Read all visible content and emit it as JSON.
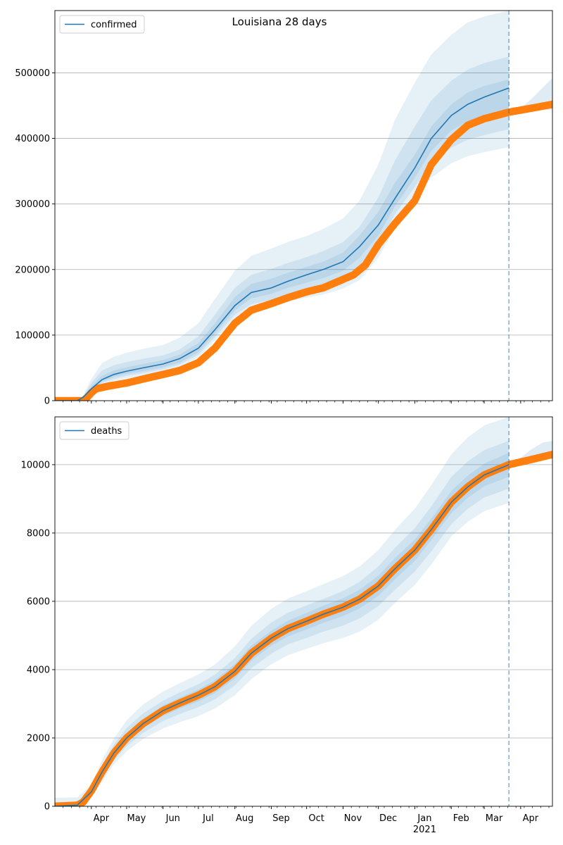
{
  "figure": {
    "title": "Louisiana 28 days"
  },
  "colors": {
    "model": "#1f77b4",
    "observed": "#ff7f0e",
    "band": "#1f77b4",
    "grid": "#b0b0b0",
    "cutoff": "#1f77b4"
  },
  "chart_data": [
    {
      "type": "area",
      "title": "Louisiana 28 days",
      "legend": {
        "label": "confirmed",
        "placement": "top-left"
      },
      "grid": "y",
      "ylim": [
        0,
        595000
      ],
      "xlim": [
        "2020-03-01",
        "2021-04-28"
      ],
      "cutoff_date": "2021-03-22",
      "yticks": [
        0,
        100000,
        200000,
        300000,
        400000,
        500000
      ],
      "ytick_labels": [
        "0",
        "100000",
        "200000",
        "300000",
        "400000",
        "500000"
      ],
      "median": {
        "name": "confirmed",
        "x": [
          "2020-03-01",
          "2020-03-20",
          "2020-03-25",
          "2020-04-01",
          "2020-04-10",
          "2020-04-20",
          "2020-05-01",
          "2020-05-15",
          "2020-06-01",
          "2020-06-15",
          "2020-07-01",
          "2020-07-15",
          "2020-08-01",
          "2020-08-15",
          "2020-09-01",
          "2020-09-15",
          "2020-10-01",
          "2020-10-15",
          "2020-11-01",
          "2020-11-15",
          "2020-12-01",
          "2020-12-15",
          "2021-01-01",
          "2021-01-15",
          "2021-02-01",
          "2021-02-15",
          "2021-03-01",
          "2021-03-22"
        ],
        "y": [
          0,
          0,
          5000,
          18000,
          32000,
          40000,
          45000,
          50000,
          56000,
          64000,
          80000,
          108000,
          145000,
          165000,
          172000,
          182000,
          192000,
          200000,
          212000,
          235000,
          268000,
          308000,
          355000,
          400000,
          435000,
          452000,
          463000,
          477000
        ]
      },
      "bands": [
        {
          "level": "outer",
          "lower": [
            0,
            0,
            2000,
            12000,
            24000,
            30000,
            34000,
            38000,
            43000,
            51000,
            66000,
            92000,
            124000,
            138000,
            144000,
            151000,
            157000,
            162000,
            171000,
            184000,
            218000,
            264000,
            307000,
            340000,
            362000,
            373000,
            379000,
            387000
          ],
          "upper": [
            0,
            0,
            8000,
            33000,
            57000,
            67000,
            73000,
            79000,
            85000,
            96000,
            118000,
            155000,
            198000,
            221000,
            232000,
            242000,
            251000,
            262000,
            278000,
            305000,
            360000,
            428000,
            485000,
            528000,
            558000,
            577000,
            586000,
            595000
          ]
        },
        {
          "level": "middle",
          "lower": [
            0,
            0,
            3000,
            14000,
            27000,
            33000,
            38000,
            42000,
            48000,
            55000,
            70000,
            97000,
            131000,
            147000,
            154000,
            162000,
            169000,
            175000,
            185000,
            202000,
            238000,
            284000,
            326000,
            362000,
            386000,
            398000,
            405000,
            414000
          ],
          "upper": [
            0,
            0,
            7000,
            27000,
            46000,
            54000,
            59000,
            64000,
            69000,
            78000,
            98000,
            131000,
            172000,
            192000,
            201000,
            210000,
            219000,
            228000,
            242000,
            265000,
            310000,
            366000,
            418000,
            458000,
            488000,
            505000,
            515000,
            525000
          ]
        },
        {
          "level": "inner",
          "lower": [
            0,
            0,
            4000,
            16000,
            29000,
            36000,
            41000,
            45000,
            51000,
            58000,
            74000,
            102000,
            138000,
            156000,
            163000,
            172000,
            180000,
            187000,
            198000,
            218000,
            252000,
            296000,
            340000,
            381000,
            412000,
            426000,
            434000,
            443000
          ],
          "upper": [
            0,
            0,
            6000,
            22000,
            38000,
            46000,
            51000,
            56000,
            62000,
            70000,
            88000,
            118000,
            158000,
            178000,
            186000,
            195000,
            204000,
            212000,
            226000,
            252000,
            288000,
            332000,
            375000,
            418000,
            452000,
            470000,
            480000,
            490000
          ]
        }
      ],
      "observed": {
        "name": "confirmed observed",
        "x": [
          "2020-03-01",
          "2020-03-25",
          "2020-03-28",
          "2020-04-01",
          "2020-04-05",
          "2020-04-15",
          "2020-05-01",
          "2020-05-15",
          "2020-06-01",
          "2020-06-15",
          "2020-07-01",
          "2020-07-15",
          "2020-08-01",
          "2020-08-15",
          "2020-09-01",
          "2020-09-15",
          "2020-10-01",
          "2020-10-15",
          "2020-11-01",
          "2020-11-10",
          "2020-11-20",
          "2020-12-01",
          "2020-12-15",
          "2021-01-01",
          "2021-01-15",
          "2021-02-01",
          "2021-02-15",
          "2021-03-01",
          "2021-03-22",
          "2021-04-10",
          "2021-04-28"
        ],
        "y": [
          0,
          0,
          4000,
          12000,
          18000,
          22000,
          27000,
          33000,
          40000,
          46000,
          58000,
          80000,
          118000,
          138000,
          148000,
          157000,
          166000,
          172000,
          185000,
          192000,
          207000,
          238000,
          270000,
          305000,
          360000,
          398000,
          420000,
          430000,
          440000,
          446000,
          452000
        ]
      },
      "forecast_band": {
        "x": [
          "2021-03-22",
          "2021-04-01",
          "2021-04-10",
          "2021-04-20",
          "2021-04-28"
        ],
        "lower": [
          440000,
          441000,
          442000,
          443000,
          444000
        ],
        "upper": [
          440000,
          446000,
          460000,
          478000,
          492000
        ]
      }
    },
    {
      "type": "area",
      "legend": {
        "label": "deaths",
        "placement": "top-left"
      },
      "grid": "y",
      "ylim": [
        0,
        11400
      ],
      "xlim": [
        "2020-03-01",
        "2021-04-28"
      ],
      "cutoff_date": "2021-03-22",
      "yticks": [
        0,
        2000,
        4000,
        6000,
        8000,
        10000
      ],
      "ytick_labels": [
        "0",
        "2000",
        "4000",
        "6000",
        "8000",
        "10000"
      ],
      "x_tick_labels": [
        {
          "date": "2020-04-01",
          "label": "Apr"
        },
        {
          "date": "2020-05-01",
          "label": "May"
        },
        {
          "date": "2020-06-01",
          "label": "Jun"
        },
        {
          "date": "2020-07-01",
          "label": "Jul"
        },
        {
          "date": "2020-08-01",
          "label": "Aug"
        },
        {
          "date": "2020-09-01",
          "label": "Sep"
        },
        {
          "date": "2020-10-01",
          "label": "Oct"
        },
        {
          "date": "2020-11-01",
          "label": "Nov"
        },
        {
          "date": "2020-12-01",
          "label": "Dec"
        },
        {
          "date": "2021-01-01",
          "label": "Jan",
          "sublabel": "2021"
        },
        {
          "date": "2021-02-01",
          "label": "Feb"
        },
        {
          "date": "2021-03-01",
          "label": "Mar"
        },
        {
          "date": "2021-04-01",
          "label": "Apr"
        }
      ],
      "median": {
        "name": "deaths",
        "x": [
          "2020-03-01",
          "2020-03-20",
          "2020-04-01",
          "2020-04-10",
          "2020-04-20",
          "2020-05-01",
          "2020-05-15",
          "2020-06-01",
          "2020-06-15",
          "2020-07-01",
          "2020-07-15",
          "2020-08-01",
          "2020-08-15",
          "2020-09-01",
          "2020-09-15",
          "2020-10-01",
          "2020-10-15",
          "2020-11-01",
          "2020-11-15",
          "2020-12-01",
          "2020-12-15",
          "2021-01-01",
          "2021-01-15",
          "2021-02-01",
          "2021-02-15",
          "2021-03-01",
          "2021-03-22"
        ],
        "y": [
          0,
          30,
          420,
          1000,
          1550,
          2000,
          2420,
          2800,
          3020,
          3250,
          3500,
          3950,
          4480,
          4920,
          5200,
          5420,
          5620,
          5830,
          6060,
          6450,
          6950,
          7500,
          8100,
          8900,
          9350,
          9700,
          10000
        ]
      },
      "bands": [
        {
          "level": "outer",
          "lower": [
            0,
            0,
            250,
            720,
            1220,
            1610,
            1970,
            2280,
            2460,
            2640,
            2860,
            3250,
            3720,
            4160,
            4420,
            4610,
            4770,
            4930,
            5110,
            5460,
            5950,
            6480,
            7080,
            7900,
            8330,
            8640,
            8880
          ],
          "upper": [
            250,
            260,
            620,
            1350,
            1970,
            2520,
            2980,
            3360,
            3600,
            3860,
            4150,
            4680,
            5280,
            5780,
            6080,
            6300,
            6500,
            6740,
            7020,
            7500,
            8090,
            8710,
            9400,
            10300,
            10800,
            11150,
            11400
          ]
        },
        {
          "level": "middle",
          "lower": [
            0,
            10,
            320,
            820,
            1340,
            1760,
            2150,
            2500,
            2700,
            2900,
            3130,
            3540,
            4040,
            4470,
            4740,
            4930,
            5110,
            5290,
            5500,
            5860,
            6330,
            6870,
            7460,
            8260,
            8710,
            9040,
            9300
          ],
          "upper": [
            120,
            140,
            540,
            1200,
            1800,
            2290,
            2720,
            3090,
            3330,
            3570,
            3850,
            4340,
            4900,
            5380,
            5660,
            5880,
            6070,
            6300,
            6570,
            7020,
            7560,
            8140,
            8780,
            9640,
            10100,
            10430,
            10700
          ]
        },
        {
          "level": "inner",
          "lower": [
            0,
            20,
            370,
            900,
            1440,
            1880,
            2290,
            2650,
            2860,
            3070,
            3310,
            3740,
            4260,
            4700,
            4970,
            5180,
            5370,
            5570,
            5790,
            6160,
            6640,
            7190,
            7790,
            8580,
            9030,
            9370,
            9650
          ],
          "upper": [
            60,
            80,
            470,
            1100,
            1670,
            2120,
            2550,
            2950,
            3180,
            3420,
            3690,
            4160,
            4700,
            5140,
            5430,
            5660,
            5870,
            6090,
            6340,
            6750,
            7260,
            7810,
            8420,
            9230,
            9680,
            10030,
            10350
          ]
        }
      ],
      "observed": {
        "name": "deaths observed",
        "x": [
          "2020-03-01",
          "2020-03-20",
          "2020-03-25",
          "2020-04-01",
          "2020-04-10",
          "2020-04-20",
          "2020-05-01",
          "2020-05-15",
          "2020-06-01",
          "2020-06-15",
          "2020-07-01",
          "2020-07-15",
          "2020-08-01",
          "2020-08-15",
          "2020-09-01",
          "2020-09-15",
          "2020-10-01",
          "2020-10-15",
          "2020-11-01",
          "2020-11-15",
          "2020-12-01",
          "2020-12-15",
          "2021-01-01",
          "2021-01-15",
          "2021-02-01",
          "2021-02-15",
          "2021-03-01",
          "2021-03-22",
          "2021-04-10",
          "2021-04-28"
        ],
        "y": [
          0,
          30,
          120,
          450,
          1000,
          1550,
          2000,
          2420,
          2800,
          3020,
          3250,
          3500,
          3950,
          4480,
          4920,
          5200,
          5420,
          5620,
          5830,
          6060,
          6450,
          6950,
          7500,
          8100,
          8900,
          9350,
          9700,
          10000,
          10150,
          10300
        ]
      },
      "forecast_band": {
        "x": [
          "2021-03-22",
          "2021-04-01",
          "2021-04-10",
          "2021-04-20",
          "2021-04-28"
        ],
        "lower": [
          10000,
          10050,
          10100,
          10150,
          10200
        ],
        "upper": [
          10000,
          10200,
          10450,
          10650,
          10700
        ]
      }
    }
  ]
}
